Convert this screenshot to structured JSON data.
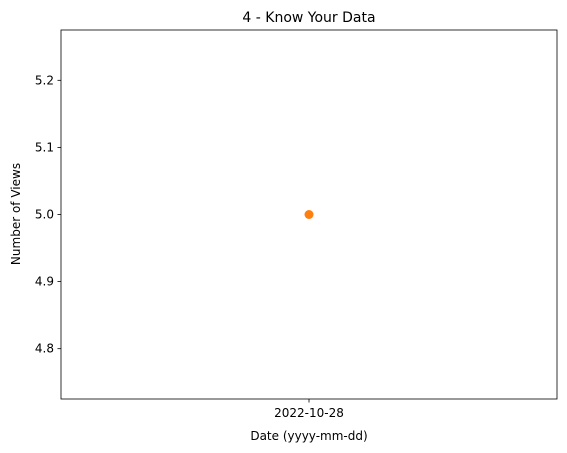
{
  "chart_data": {
    "type": "scatter",
    "title": "4 - Know Your Data",
    "xlabel": "Date (yyyy-mm-dd)",
    "ylabel": "Number of Views",
    "x_categories": [
      "2022-10-28"
    ],
    "points": [
      {
        "x": "2022-10-28",
        "y": 5.0
      }
    ],
    "ylim": [
      4.725,
      5.275
    ],
    "yticks": [
      4.8,
      4.9,
      5.0,
      5.1,
      5.2
    ],
    "ytick_labels": [
      "4.8",
      "4.9",
      "5.0",
      "5.1",
      "5.2"
    ],
    "grid": false,
    "marker_color": "#ff7f0e"
  }
}
